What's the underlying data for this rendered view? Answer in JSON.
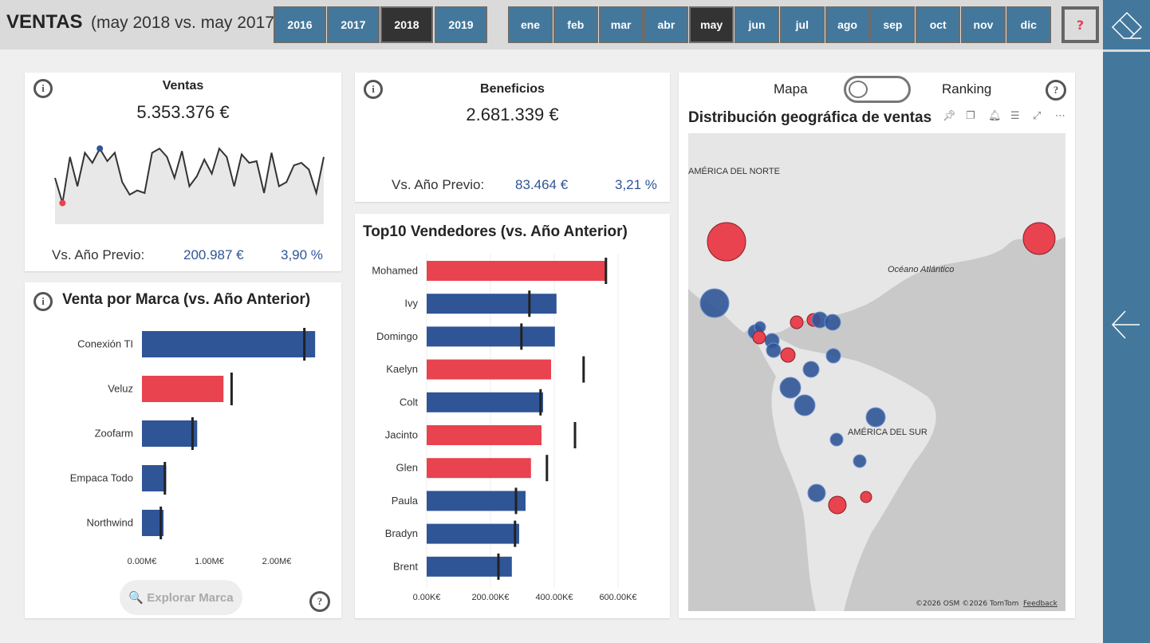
{
  "header": {
    "title": "VENTAS",
    "subtitle": "(may 2018 vs. may 2017)",
    "years": [
      "2016",
      "2017",
      "2018",
      "2019"
    ],
    "selected_year": "2018",
    "months": [
      "ene",
      "feb",
      "mar",
      "abr",
      "may",
      "jun",
      "jul",
      "ago",
      "sep",
      "oct",
      "nov",
      "dic"
    ],
    "selected_month": "may",
    "help": "?"
  },
  "colors": {
    "primary": "#2f5597",
    "negative": "#e8434f",
    "nav": "#43789c"
  },
  "ventas": {
    "info": "i",
    "label": "Ventas",
    "value": "5.353.376 €",
    "vs_label": "Vs. Año Previo:",
    "vs_abs": "200.987 €",
    "vs_pct": "3,90 %",
    "trend": [
      60,
      30,
      85,
      50,
      90,
      78,
      95,
      80,
      90,
      55,
      40,
      45,
      42,
      90,
      95,
      85,
      60,
      92,
      50,
      62,
      82,
      65,
      95,
      85,
      50,
      88,
      78,
      80,
      42,
      90,
      50,
      55,
      75,
      78,
      70,
      42,
      85
    ]
  },
  "beneficios": {
    "info": "i",
    "label": "Beneficios",
    "value": "2.681.339 €",
    "vs_label": "Vs. Año Previo:",
    "vs_abs": "83.464 €",
    "vs_pct": "3,21 %"
  },
  "marca": {
    "info": "i",
    "title": "Venta por Marca (vs. Año Anterior)",
    "explore": "🔍 Explorar Marca",
    "help": "?",
    "chart_data": {
      "type": "bar",
      "orientation": "horizontal",
      "categories": [
        "Conexión TI",
        "Veluz",
        "Zoofarm",
        "Empaca Todo",
        "Northwind"
      ],
      "values": [
        2.57,
        1.21,
        0.82,
        0.36,
        0.32
      ],
      "targets": [
        2.41,
        1.33,
        0.75,
        0.34,
        0.28
      ],
      "negative": [
        false,
        true,
        false,
        false,
        false
      ],
      "xticks": [
        "0.00M€",
        "1.00M€",
        "2.00M€"
      ],
      "xtick_values": [
        0,
        1,
        2
      ],
      "xlim": [
        0,
        2.6
      ],
      "unit": "M€"
    }
  },
  "top10": {
    "title": "Top10 Vendedores (vs. Año Anterior)",
    "chart_data": {
      "type": "bar",
      "orientation": "horizontal",
      "categories": [
        "Mohamed",
        "Ivy",
        "Domingo",
        "Kaelyn",
        "Colt",
        "Jacinto",
        "Glen",
        "Paula",
        "Bradyn",
        "Brent"
      ],
      "values": [
        562,
        407,
        402,
        390,
        365,
        360,
        327,
        310,
        290,
        267
      ],
      "targets": [
        562,
        322,
        297,
        492,
        357,
        465,
        377,
        280,
        277,
        225
      ],
      "negative": [
        true,
        false,
        false,
        true,
        false,
        true,
        true,
        false,
        false,
        false
      ],
      "xticks": [
        "0.00K€",
        "200.00K€",
        "400.00K€",
        "600.00K€"
      ],
      "xtick_values": [
        0,
        200,
        400,
        600
      ],
      "unit": "K€"
    }
  },
  "mapa": {
    "toggle_left": "Mapa",
    "toggle_right": "Ranking",
    "help": "?",
    "title": "Distribución geográfica de ventas",
    "labels": {
      "north_america": "AMÉRICA DEL NORTE",
      "ocean": "Océano\nAtlántico",
      "south_america": "AMÉRICA DEL SUR"
    },
    "attribution": "©2026 OSM  ©2026 TomTom",
    "feedback": "Feedback"
  }
}
